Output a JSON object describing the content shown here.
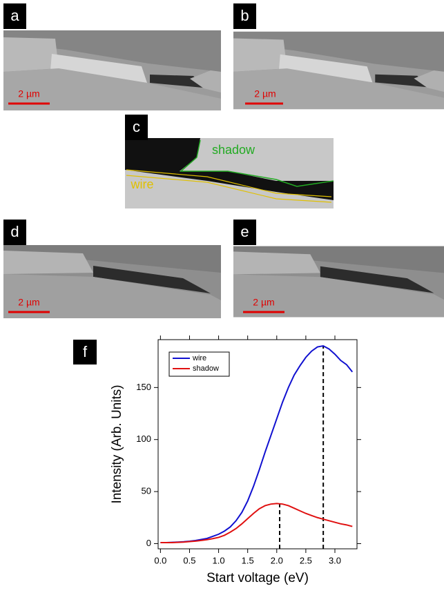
{
  "panels": [
    {
      "label": "a",
      "scale_bar": "2 µm"
    },
    {
      "label": "b",
      "scale_bar": "2 µm"
    },
    {
      "label": "c",
      "annotations": [
        "shadow",
        "wire"
      ]
    },
    {
      "label": "d",
      "scale_bar": "2 µm"
    },
    {
      "label": "e",
      "scale_bar": "2 µm"
    }
  ],
  "chart_data": {
    "type": "line",
    "label": "f",
    "xlabel": "Start voltage (eV)",
    "ylabel": "Intensity (Arb. Units)",
    "x": [
      0,
      0.1,
      0.2,
      0.3,
      0.4,
      0.5,
      0.6,
      0.7,
      0.8,
      0.9,
      1.0,
      1.1,
      1.2,
      1.3,
      1.4,
      1.5,
      1.6,
      1.7,
      1.8,
      1.9,
      2.0,
      2.1,
      2.2,
      2.3,
      2.4,
      2.5,
      2.6,
      2.7,
      2.8,
      2.9,
      3.0,
      3.1,
      3.2,
      3.3
    ],
    "series": [
      {
        "name": "wire",
        "color": "#1010d0",
        "values": [
          1,
          1,
          1.2,
          1.5,
          1.8,
          2.3,
          3,
          4,
          5,
          7,
          9,
          12,
          16,
          22,
          30,
          41,
          55,
          71,
          88,
          104,
          120,
          136,
          150,
          162,
          171,
          179,
          185,
          189,
          190,
          187,
          182,
          176,
          172,
          165
        ]
      },
      {
        "name": "shadow",
        "color": "#e01010",
        "values": [
          1,
          1,
          1,
          1.2,
          1.5,
          2,
          2.4,
          3,
          3.8,
          4.8,
          6,
          8,
          11,
          14.5,
          19,
          24,
          29,
          33.5,
          36.5,
          38,
          38.5,
          38,
          36.5,
          34,
          31.5,
          29,
          27,
          25,
          23.5,
          22,
          20.5,
          19,
          18,
          16.5
        ]
      }
    ],
    "peak_lines": [
      {
        "x": 2.05,
        "y": 38.5
      },
      {
        "x": 2.8,
        "y": 190
      }
    ],
    "xlim": [
      -0.04,
      3.38
    ],
    "ylim": [
      -5,
      196
    ],
    "xticks": [
      {
        "value": 0,
        "label": "0.0"
      },
      0.5,
      {
        "value": 1,
        "label": "1.0"
      },
      1.5,
      {
        "value": 2,
        "label": "2.0"
      },
      2.5,
      {
        "value": 3,
        "label": "3.0"
      }
    ],
    "yticks": [
      0,
      50,
      100,
      150
    ],
    "legend": "upper left"
  }
}
